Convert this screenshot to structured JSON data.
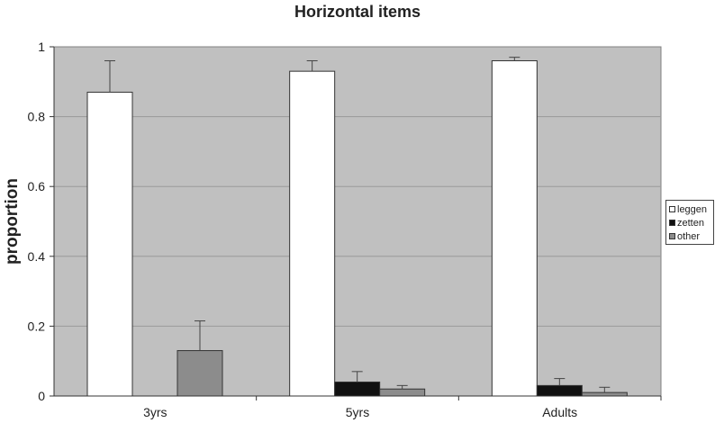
{
  "chart_data": {
    "type": "bar",
    "title": "Horizontal items",
    "xlabel": "",
    "ylabel": "proportion",
    "ylim": [
      0,
      1
    ],
    "yticks": [
      "0",
      "0.2",
      "0.4",
      "0.6",
      "0.8",
      "1"
    ],
    "categories": [
      "3yrs",
      "5yrs",
      "Adults"
    ],
    "series": [
      {
        "name": "leggen",
        "color": "#ffffff",
        "values": [
          0.87,
          0.93,
          0.96
        ],
        "error": [
          0.09,
          0.03,
          0.01
        ]
      },
      {
        "name": "zetten",
        "color": "#111111",
        "values": [
          0,
          0.04,
          0.03
        ],
        "error": [
          0,
          0.03,
          0.02
        ]
      },
      {
        "name": "other",
        "color": "#8c8c8c",
        "values": [
          0.13,
          0.02,
          0.01
        ],
        "error": [
          0.085,
          0.01,
          0.015
        ]
      }
    ],
    "grid": true,
    "legend_position": "right",
    "plot_background": "#c0c0c0"
  }
}
